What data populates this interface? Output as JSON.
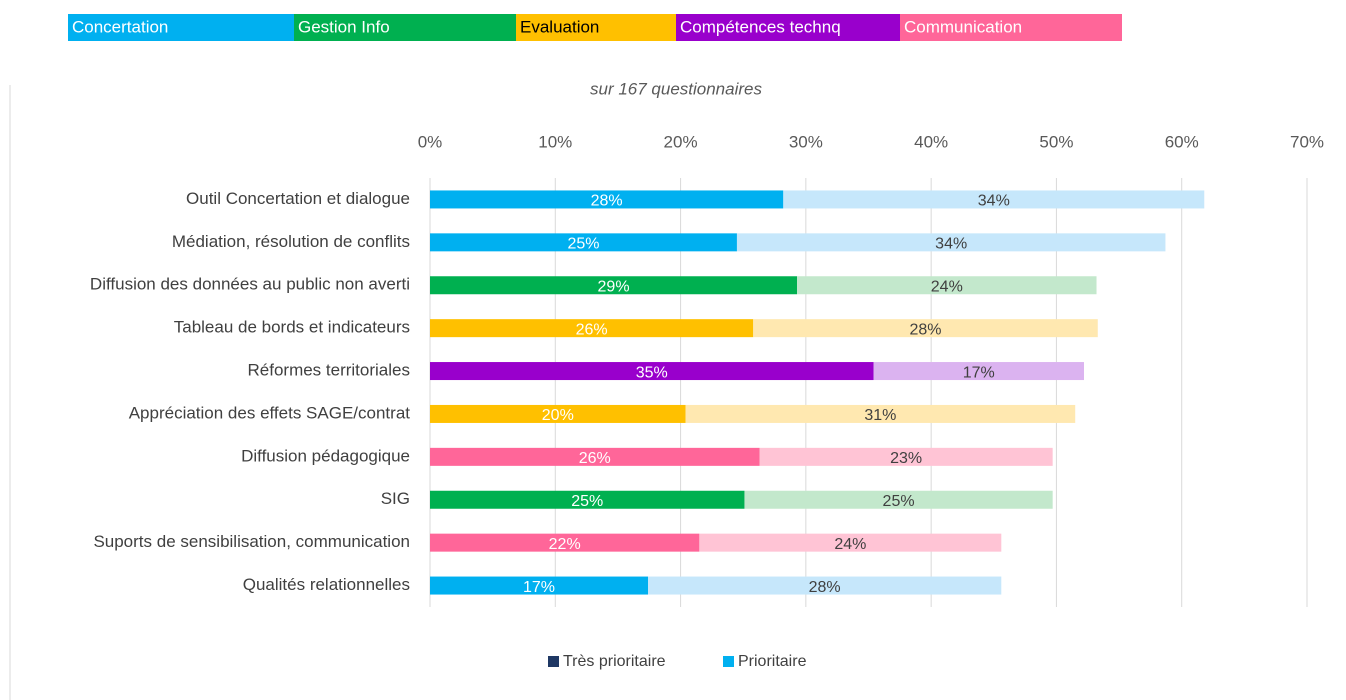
{
  "chart_data": {
    "type": "bar",
    "orientation": "horizontal",
    "stacked": true,
    "subtitle": "sur 167 questionnaires",
    "groups": [
      {
        "name": "Concertation",
        "color": "#00b0f0",
        "text_color": "#ffffff"
      },
      {
        "name": "Gestion Info",
        "color": "#00b050",
        "text_color": "#ffffff"
      },
      {
        "name": "Evaluation",
        "color": "#ffc000",
        "text_color": "#000000"
      },
      {
        "name": "Compétences technq",
        "color": "#9900cc",
        "text_color": "#ffffff"
      },
      {
        "name": "Communication",
        "color": "#ff6699",
        "text_color": "#ffffff"
      }
    ],
    "categories": [
      "Outil Concertation et dialogue",
      "Médiation, résolution de conflits",
      "Diffusion des données au public non averti",
      "Tableau de bords et indicateurs",
      "Réformes territoriales",
      "Appréciation des effets SAGE/contrat",
      "Diffusion pédagogique",
      "SIG",
      "Suports de sensibilisation, communication",
      "Qualités relationnelles"
    ],
    "series": [
      {
        "name": "Très prioritaire",
        "color": "#1f3864",
        "values": [
          28.2,
          24.5,
          29.3,
          25.8,
          35.4,
          20.4,
          26.3,
          25.1,
          21.5,
          17.4
        ],
        "value_labels": [
          "28%",
          "25%",
          "29%",
          "26%",
          "35%",
          "20%",
          "26%",
          "25%",
          "22%",
          "17%"
        ],
        "bar_colors": [
          "#00b0f0",
          "#00b0f0",
          "#00b050",
          "#ffc000",
          "#9900cc",
          "#ffc000",
          "#ff6699",
          "#00b050",
          "#ff6699",
          "#00b0f0"
        ],
        "label_color": "#ffffff"
      },
      {
        "name": "Prioritaire",
        "color": "#00b0f0",
        "values": [
          33.6,
          34.2,
          23.9,
          27.5,
          16.8,
          31.1,
          23.4,
          24.6,
          24.1,
          28.2
        ],
        "value_labels": [
          "34%",
          "34%",
          "24%",
          "28%",
          "17%",
          "31%",
          "23%",
          "25%",
          "24%",
          "28%"
        ],
        "bar_colors": [
          "#c6e7fb",
          "#c6e7fb",
          "#c3e8cc",
          "#ffe8b0",
          "#dbb3f0",
          "#ffe8b0",
          "#ffc4d5",
          "#c3e8cc",
          "#ffc4d5",
          "#c6e7fb"
        ],
        "label_color": "#404040"
      }
    ],
    "xlim": [
      0,
      70
    ],
    "xticks": [
      {
        "value": 0,
        "label": "0%"
      },
      {
        "value": 10,
        "label": "10%"
      },
      {
        "value": 20,
        "label": "20%"
      },
      {
        "value": 30,
        "label": "30%"
      },
      {
        "value": 40,
        "label": "40%"
      },
      {
        "value": 50,
        "label": "50%"
      },
      {
        "value": 60,
        "label": "60%"
      },
      {
        "value": 70,
        "label": "70%"
      }
    ],
    "grid": true,
    "legend_position": "bottom"
  }
}
